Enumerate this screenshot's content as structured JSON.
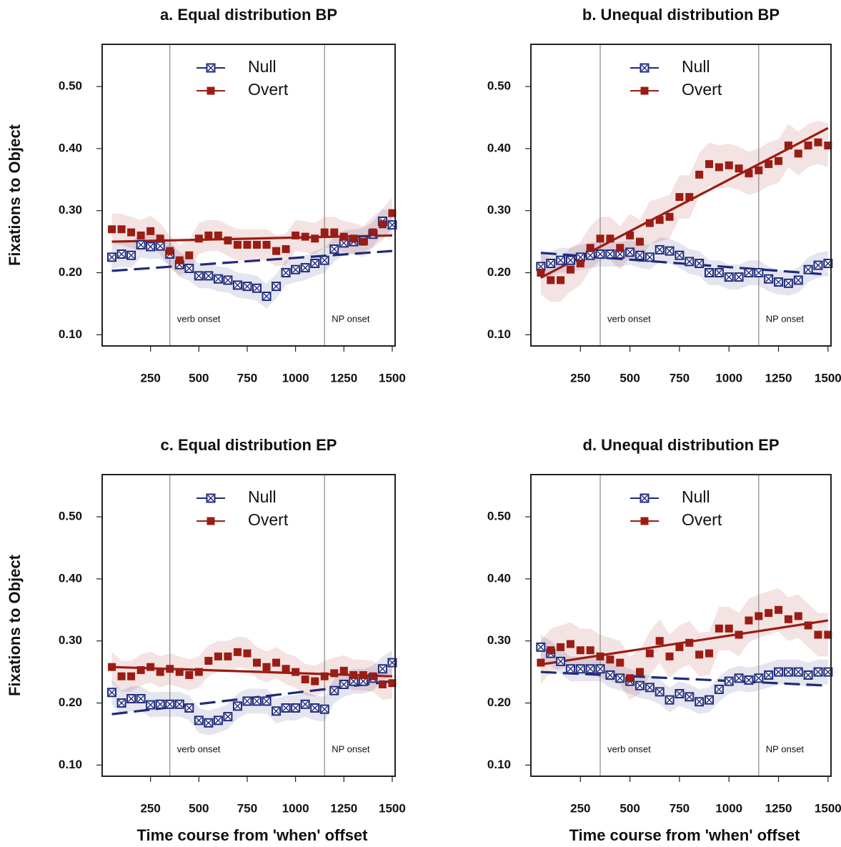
{
  "chart_data": [
    {
      "type": "scatter",
      "title": "a. Equal distribution BP",
      "ylabel": "Fixations to Object",
      "x": [
        50,
        100,
        150,
        200,
        250,
        300,
        350,
        400,
        450,
        500,
        550,
        600,
        650,
        700,
        750,
        800,
        850,
        900,
        950,
        1000,
        1050,
        1100,
        1150,
        1200,
        1250,
        1300,
        1350,
        1400,
        1450,
        1500
      ],
      "series": [
        {
          "name": "Null",
          "color": "#1f2a7a",
          "marker": "boxed-x",
          "fit_style": "dashed",
          "ci": 0.02,
          "fit": [
            0.203,
            0.235
          ],
          "values": [
            0.225,
            0.23,
            0.228,
            0.245,
            0.242,
            0.243,
            0.23,
            0.213,
            0.207,
            0.195,
            0.195,
            0.19,
            0.188,
            0.18,
            0.178,
            0.175,
            0.162,
            0.178,
            0.2,
            0.205,
            0.208,
            0.215,
            0.22,
            0.238,
            0.248,
            0.25,
            0.252,
            0.262,
            0.283,
            0.277
          ]
        },
        {
          "name": "Overt",
          "color": "#9b1c14",
          "marker": "square",
          "fit_style": "solid",
          "ci": 0.025,
          "fit": [
            0.25,
            0.26
          ],
          "values": [
            0.27,
            0.27,
            0.265,
            0.26,
            0.267,
            0.255,
            0.235,
            0.22,
            0.228,
            0.255,
            0.26,
            0.26,
            0.252,
            0.245,
            0.245,
            0.245,
            0.245,
            0.235,
            0.238,
            0.26,
            0.258,
            0.255,
            0.265,
            0.265,
            0.258,
            0.255,
            0.25,
            0.265,
            0.278,
            0.296
          ]
        }
      ],
      "xlim": [
        0,
        1515
      ],
      "ylim": [
        0.082,
        0.568
      ],
      "xticks": [
        250,
        500,
        750,
        1000,
        1250,
        1500
      ],
      "yticks": [
        {
          "value": 0.1,
          "label": "0.10"
        },
        {
          "value": 0.2,
          "label": "0.20"
        },
        {
          "value": 0.3,
          "label": "0.30"
        },
        {
          "value": 0.4,
          "label": "0.40"
        },
        {
          "value": 0.5,
          "label": "0.50"
        }
      ],
      "vlines": [
        {
          "x": 350,
          "label": "verb onset"
        },
        {
          "x": 1150,
          "label": "NP onset"
        }
      ],
      "legend": "top"
    },
    {
      "type": "scatter",
      "title": "b. Unequal distribution BP",
      "x": [
        50,
        100,
        150,
        200,
        250,
        300,
        350,
        400,
        450,
        500,
        550,
        600,
        650,
        700,
        750,
        800,
        850,
        900,
        950,
        1000,
        1050,
        1100,
        1150,
        1200,
        1250,
        1300,
        1350,
        1400,
        1450,
        1500
      ],
      "series": [
        {
          "name": "Null",
          "color": "#1f2a7a",
          "marker": "boxed-x",
          "fit_style": "dashed",
          "ci": 0.02,
          "fit": [
            0.232,
            0.197
          ],
          "values": [
            0.21,
            0.215,
            0.22,
            0.22,
            0.225,
            0.228,
            0.23,
            0.23,
            0.23,
            0.233,
            0.228,
            0.225,
            0.237,
            0.235,
            0.228,
            0.218,
            0.215,
            0.2,
            0.2,
            0.193,
            0.193,
            0.2,
            0.2,
            0.19,
            0.185,
            0.183,
            0.188,
            0.205,
            0.212,
            0.215
          ]
        },
        {
          "name": "Overt",
          "color": "#9b1c14",
          "marker": "square",
          "fit_style": "solid",
          "ci": 0.035,
          "fit": [
            0.192,
            0.433
          ],
          "values": [
            0.2,
            0.188,
            0.188,
            0.205,
            0.215,
            0.24,
            0.255,
            0.255,
            0.24,
            0.26,
            0.25,
            0.28,
            0.285,
            0.29,
            0.322,
            0.322,
            0.358,
            0.375,
            0.37,
            0.373,
            0.368,
            0.36,
            0.365,
            0.375,
            0.38,
            0.405,
            0.392,
            0.405,
            0.41,
            0.405
          ]
        }
      ],
      "xlim": [
        0,
        1515
      ],
      "ylim": [
        0.082,
        0.568
      ],
      "xticks": [
        250,
        500,
        750,
        1000,
        1250,
        1500
      ],
      "yticks": [
        {
          "value": 0.1,
          "label": "0.10"
        },
        {
          "value": 0.2,
          "label": "0.20"
        },
        {
          "value": 0.3,
          "label": "0.30"
        },
        {
          "value": 0.4,
          "label": "0.40"
        },
        {
          "value": 0.5,
          "label": "0.50"
        }
      ],
      "vlines": [
        {
          "x": 350,
          "label": "verb onset"
        },
        {
          "x": 1150,
          "label": "NP onset"
        }
      ],
      "legend": "top"
    },
    {
      "type": "scatter",
      "title": "c. Equal distribution EP",
      "ylabel": "Fixations to Object",
      "xlabel": "Time course from 'when' offset",
      "x": [
        50,
        100,
        150,
        200,
        250,
        300,
        350,
        400,
        450,
        500,
        550,
        600,
        650,
        700,
        750,
        800,
        850,
        900,
        950,
        1000,
        1050,
        1100,
        1150,
        1200,
        1250,
        1300,
        1350,
        1400,
        1450,
        1500
      ],
      "series": [
        {
          "name": "Null",
          "color": "#1f2a7a",
          "marker": "boxed-x",
          "fit_style": "dashed",
          "ci": 0.02,
          "fit": [
            0.182,
            0.235
          ],
          "values": [
            0.217,
            0.2,
            0.207,
            0.207,
            0.197,
            0.198,
            0.198,
            0.198,
            0.192,
            0.172,
            0.168,
            0.172,
            0.178,
            0.195,
            0.203,
            0.203,
            0.203,
            0.187,
            0.192,
            0.192,
            0.198,
            0.192,
            0.19,
            0.22,
            0.23,
            0.235,
            0.235,
            0.24,
            0.255,
            0.265
          ]
        },
        {
          "name": "Overt",
          "color": "#9b1c14",
          "marker": "square",
          "fit_style": "solid",
          "ci": 0.025,
          "fit": [
            0.258,
            0.243
          ],
          "values": [
            0.258,
            0.243,
            0.243,
            0.253,
            0.258,
            0.25,
            0.255,
            0.25,
            0.245,
            0.25,
            0.268,
            0.275,
            0.275,
            0.282,
            0.28,
            0.265,
            0.258,
            0.265,
            0.255,
            0.25,
            0.238,
            0.235,
            0.243,
            0.248,
            0.252,
            0.245,
            0.245,
            0.243,
            0.23,
            0.232
          ]
        }
      ],
      "xlim": [
        0,
        1515
      ],
      "ylim": [
        0.082,
        0.568
      ],
      "xticks": [
        250,
        500,
        750,
        1000,
        1250,
        1500
      ],
      "yticks": [
        {
          "value": 0.1,
          "label": "0.10"
        },
        {
          "value": 0.2,
          "label": "0.20"
        },
        {
          "value": 0.3,
          "label": "0.30"
        },
        {
          "value": 0.4,
          "label": "0.40"
        },
        {
          "value": 0.5,
          "label": "0.50"
        }
      ],
      "vlines": [
        {
          "x": 350,
          "label": "verb onset"
        },
        {
          "x": 1150,
          "label": "NP onset"
        }
      ],
      "legend": "top"
    },
    {
      "type": "scatter",
      "title": "d. Unequal distribution EP",
      "xlabel": "Time course from 'when' offset",
      "x": [
        50,
        100,
        150,
        200,
        250,
        300,
        350,
        400,
        450,
        500,
        550,
        600,
        650,
        700,
        750,
        800,
        850,
        900,
        950,
        1000,
        1050,
        1100,
        1150,
        1200,
        1250,
        1300,
        1350,
        1400,
        1450,
        1500
      ],
      "series": [
        {
          "name": "Null",
          "color": "#1f2a7a",
          "marker": "boxed-x",
          "fit_style": "dashed",
          "ci": 0.02,
          "fit": [
            0.25,
            0.228
          ],
          "values": [
            0.29,
            0.28,
            0.267,
            0.255,
            0.255,
            0.255,
            0.255,
            0.245,
            0.24,
            0.235,
            0.228,
            0.225,
            0.218,
            0.205,
            0.215,
            0.21,
            0.202,
            0.205,
            0.222,
            0.235,
            0.24,
            0.237,
            0.24,
            0.245,
            0.25,
            0.25,
            0.25,
            0.245,
            0.25,
            0.25
          ]
        },
        {
          "name": "Overt",
          "color": "#9b1c14",
          "marker": "square",
          "fit_style": "solid",
          "ci": 0.035,
          "fit": [
            0.262,
            0.333
          ],
          "values": [
            0.265,
            0.285,
            0.29,
            0.295,
            0.285,
            0.285,
            0.275,
            0.27,
            0.265,
            0.24,
            0.25,
            0.28,
            0.3,
            0.275,
            0.29,
            0.297,
            0.278,
            0.28,
            0.32,
            0.32,
            0.31,
            0.333,
            0.34,
            0.345,
            0.35,
            0.335,
            0.34,
            0.325,
            0.31,
            0.31
          ]
        }
      ],
      "xlim": [
        0,
        1515
      ],
      "ylim": [
        0.082,
        0.568
      ],
      "xticks": [
        250,
        500,
        750,
        1000,
        1250,
        1500
      ],
      "yticks": [
        {
          "value": 0.1,
          "label": "0.10"
        },
        {
          "value": 0.2,
          "label": "0.20"
        },
        {
          "value": 0.3,
          "label": "0.30"
        },
        {
          "value": 0.4,
          "label": "0.40"
        },
        {
          "value": 0.5,
          "label": "0.50"
        }
      ],
      "vlines": [
        {
          "x": 350,
          "label": "verb onset"
        },
        {
          "x": 1150,
          "label": "NP onset"
        }
      ],
      "legend": "top"
    }
  ]
}
